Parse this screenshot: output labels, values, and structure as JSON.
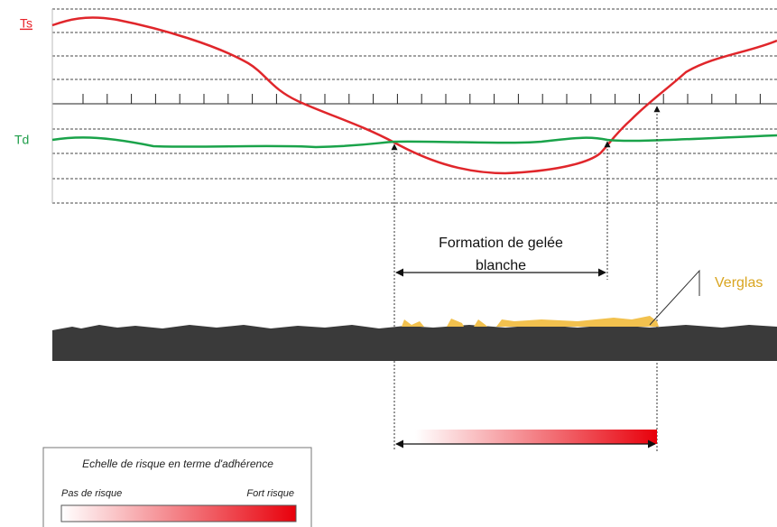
{
  "labels": {
    "ts": "Ts",
    "td": "Td",
    "frost": [
      "Formation de gelée",
      "blanche"
    ],
    "verglas": "Verglas"
  },
  "legend": {
    "title": "Echelle de risque en terme d'adhérence",
    "low": "Pas de risque",
    "high": "Fort risque"
  }
}
